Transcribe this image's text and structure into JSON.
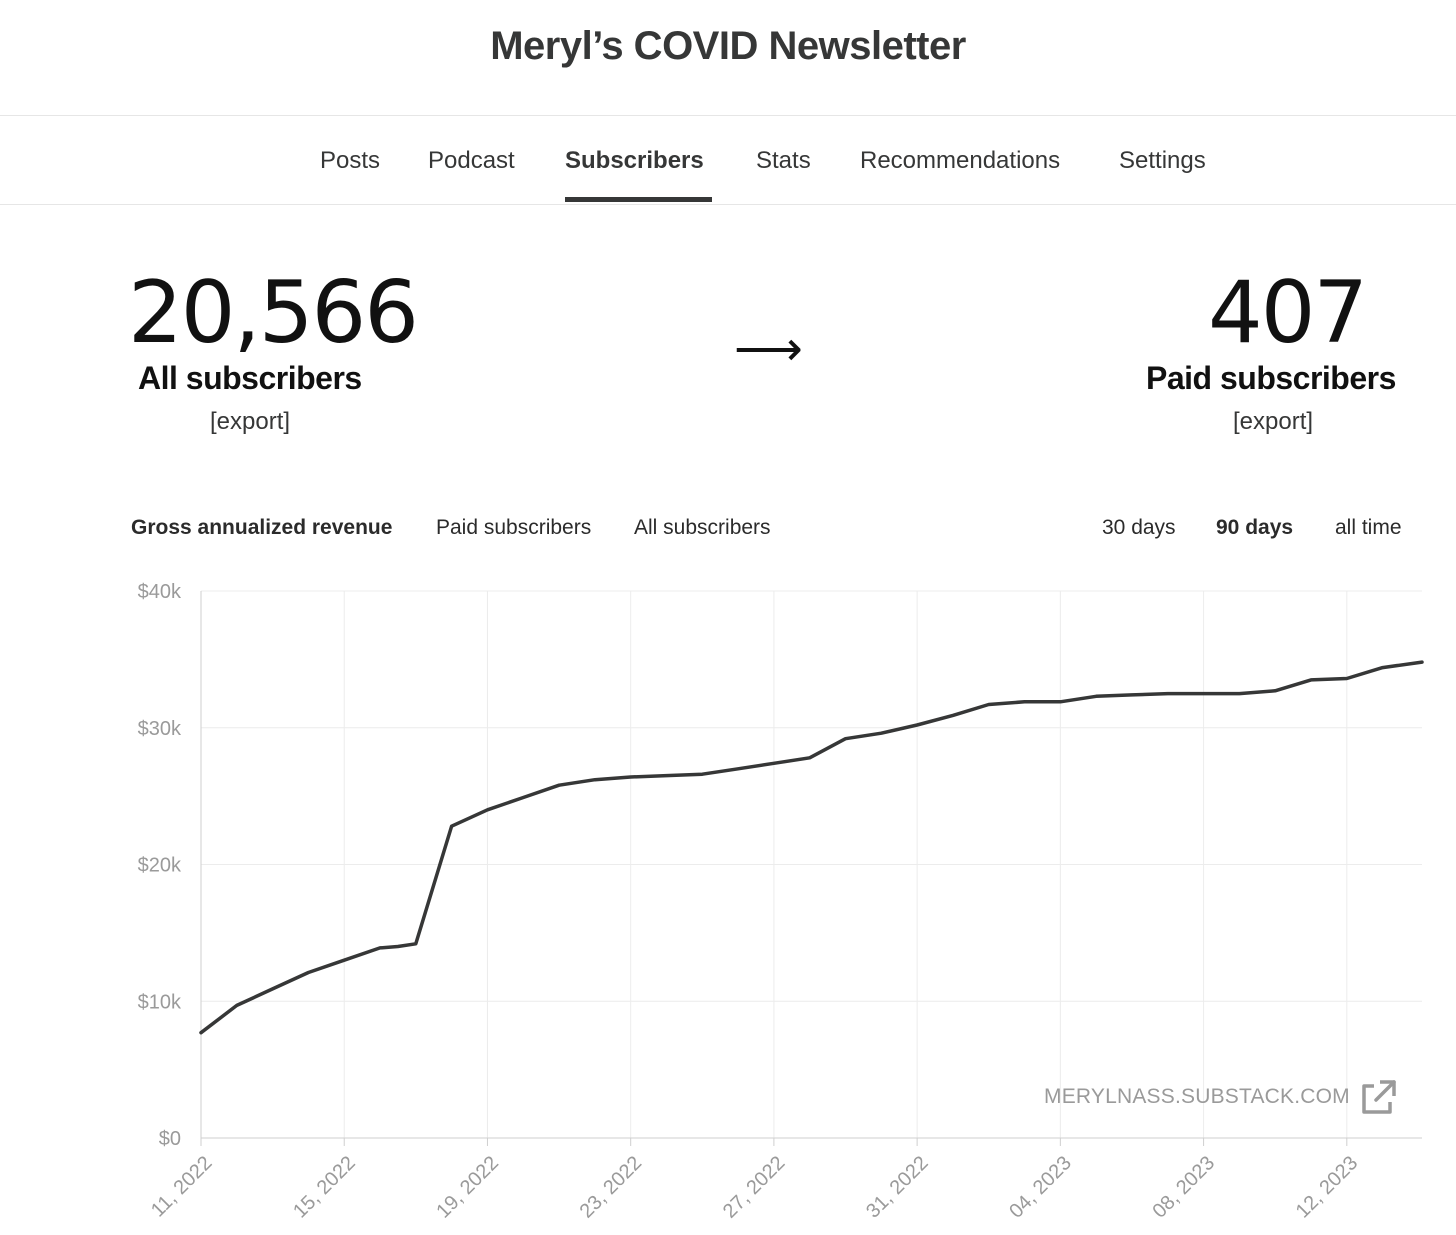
{
  "header": {
    "title": "Meryl’s COVID Newsletter"
  },
  "tabs": [
    {
      "label": "Posts",
      "active": false
    },
    {
      "label": "Podcast",
      "active": false
    },
    {
      "label": "Subscribers",
      "active": true
    },
    {
      "label": "Stats",
      "active": false
    },
    {
      "label": "Recommendations",
      "active": false
    },
    {
      "label": "Settings",
      "active": false
    }
  ],
  "summary": {
    "all": {
      "count": "20,566",
      "label": "All subscribers",
      "export": "[export]"
    },
    "arrow": "⟶",
    "paid": {
      "count": "407",
      "label": "Paid subscribers",
      "export": "[export]"
    }
  },
  "chart_controls": {
    "metrics": [
      {
        "label": "Gross annualized revenue",
        "active": true
      },
      {
        "label": "Paid subscribers",
        "active": false
      },
      {
        "label": "All subscribers",
        "active": false
      }
    ],
    "ranges": [
      {
        "label": "30 days",
        "active": false
      },
      {
        "label": "90 days",
        "active": true
      },
      {
        "label": "all time",
        "active": false
      }
    ]
  },
  "chart_data": {
    "type": "line",
    "title": "",
    "xlabel": "",
    "ylabel": "",
    "ylim": [
      0,
      40000
    ],
    "yticks": [
      {
        "value": 0,
        "label": "$0"
      },
      {
        "value": 10000,
        "label": "$10k"
      },
      {
        "value": 20000,
        "label": "$20k"
      },
      {
        "value": 30000,
        "label": "$30k"
      },
      {
        "value": 40000,
        "label": "$40k"
      }
    ],
    "xlim": [
      0,
      34.1
    ],
    "xticks": [
      {
        "value": 0,
        "label": "11, 2022"
      },
      {
        "value": 4,
        "label": "15, 2022"
      },
      {
        "value": 8,
        "label": "19, 2022"
      },
      {
        "value": 12,
        "label": "23, 2022"
      },
      {
        "value": 16,
        "label": "27, 2022"
      },
      {
        "value": 20,
        "label": "31, 2022"
      },
      {
        "value": 24,
        "label": "04, 2023"
      },
      {
        "value": 28,
        "label": "08, 2023"
      },
      {
        "value": 32,
        "label": "12, 2023"
      }
    ],
    "grid": true,
    "series": [
      {
        "color": "#363737",
        "x": [
          0,
          1,
          2,
          3,
          4,
          5,
          5.5,
          6,
          7,
          8,
          9,
          10,
          11,
          12,
          13,
          14,
          15,
          16,
          17,
          18,
          19,
          20,
          21,
          22,
          23,
          24,
          25,
          26,
          27,
          28,
          29,
          30,
          31,
          32,
          33,
          34.1
        ],
        "y": [
          7700,
          9700,
          10900,
          12100,
          13000,
          13900,
          14000,
          14200,
          22800,
          24000,
          24900,
          25800,
          26200,
          26400,
          26500,
          26600,
          27000,
          27400,
          27800,
          29200,
          29600,
          30200,
          30900,
          31700,
          31900,
          31900,
          32300,
          32400,
          32500,
          32500,
          32500,
          32700,
          33500,
          33600,
          34400,
          34800
        ]
      }
    ]
  },
  "watermark": {
    "text": "MERYLNASS.SUBSTACK.COM",
    "icon": "external-link-icon"
  }
}
